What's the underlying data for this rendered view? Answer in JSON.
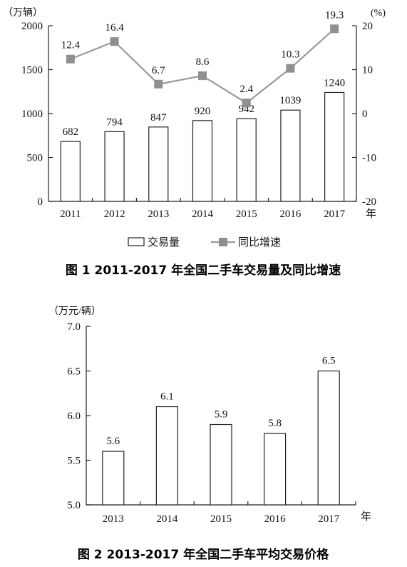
{
  "chart_data": [
    {
      "type": "bar+line",
      "title": "图 1 2011-2017 年全国二手车交易量及同比增速",
      "categories": [
        "2011",
        "2012",
        "2013",
        "2014",
        "2015",
        "2016",
        "2017"
      ],
      "x_unit": "年",
      "series": [
        {
          "name": "交易量",
          "type": "bar",
          "axis": "left",
          "values": [
            682,
            794,
            847,
            920,
            942,
            1039,
            1240
          ],
          "labels": [
            "682",
            "794",
            "847",
            "920",
            "942",
            "1039",
            "1240"
          ]
        },
        {
          "name": "同比增速",
          "type": "line",
          "axis": "right",
          "values": [
            12.4,
            16.4,
            6.7,
            8.6,
            2.4,
            10.3,
            19.3
          ],
          "labels": [
            "12.4",
            "16.4",
            "6.7",
            "8.6",
            "2.4",
            "10.3",
            "19.3"
          ]
        }
      ],
      "y_left": {
        "unit": "（万辆）",
        "ylim": [
          0,
          2000
        ],
        "ticks": [
          "0",
          "500",
          "1000",
          "1500",
          "2000"
        ]
      },
      "y_right": {
        "unit": "(%)",
        "ylim": [
          -20,
          20
        ],
        "ticks": [
          "-20",
          "-10",
          "0",
          "10",
          "20"
        ]
      },
      "legend_position": "bottom",
      "grid": false
    },
    {
      "type": "bar",
      "title": "图 2 2013-2017 年全国二手车平均交易价格",
      "categories": [
        "2013",
        "2014",
        "2015",
        "2016",
        "2017"
      ],
      "x_unit": "年",
      "values": [
        5.6,
        6.1,
        5.9,
        5.8,
        6.5
      ],
      "labels": [
        "5.6",
        "6.1",
        "5.9",
        "5.8",
        "6.5"
      ],
      "y_axis": {
        "unit": "（万元/辆）",
        "ylim": [
          5.0,
          7.0
        ],
        "ticks": [
          "5.0",
          "5.5",
          "6.0",
          "6.5",
          "7.0"
        ]
      },
      "grid": false
    }
  ],
  "colors": {
    "bar_fill": "#ffffff",
    "bar_stroke": "#222222",
    "line": "#9a9a9a",
    "marker": "#8f8f8f"
  }
}
